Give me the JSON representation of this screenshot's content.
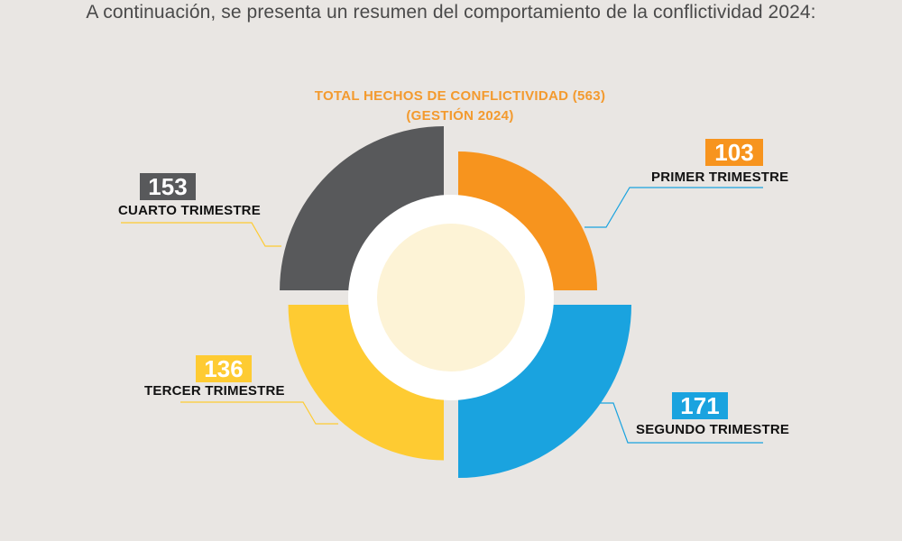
{
  "intro_text": "A continuación, se presenta un resumen del comportamiento de la conflictividad 2024:",
  "title_line1": "TOTAL HECHOS DE CONFLICTIVIDAD (563)",
  "title_line2": "(GESTIÓN 2024)",
  "chart_data": {
    "type": "pie",
    "title": "TOTAL HECHOS DE CONFLICTIVIDAD (563) (GESTIÓN 2024)",
    "total": 563,
    "categories": [
      "PRIMER TRIMESTRE",
      "SEGUNDO TRIMESTRE",
      "TERCER TRIMESTRE",
      "CUARTO TRIMESTRE"
    ],
    "values": [
      103,
      171,
      136,
      153
    ],
    "colors": [
      "#f7941e",
      "#1aa3df",
      "#fecb32",
      "#58595b"
    ],
    "slices": [
      {
        "label": "PRIMER TRIMESTRE",
        "value": "103",
        "color": "#f7941e"
      },
      {
        "label": "SEGUNDO TRIMESTRE",
        "value": "171",
        "color": "#1aa3df"
      },
      {
        "label": "TERCER TRIMESTRE",
        "value": "136",
        "color": "#fecb32"
      },
      {
        "label": "CUARTO TRIMESTRE",
        "value": "153",
        "color": "#58595b"
      }
    ],
    "center_color": "#fdf3d6",
    "legend": "none"
  }
}
